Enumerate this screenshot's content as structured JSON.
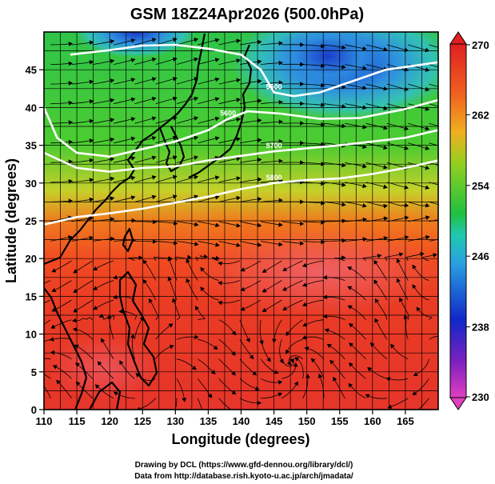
{
  "title": "GSM 18Z24Apr2026 (500.0hPa)",
  "xlabel": "Longitude (degrees)",
  "ylabel": "Latitude  (degrees)",
  "x_ticks": [
    "110",
    "115",
    "120",
    "125",
    "130",
    "135",
    "140",
    "145",
    "150",
    "155",
    "160",
    "165"
  ],
  "y_ticks": [
    "0",
    "5",
    "10",
    "15",
    "20",
    "25",
    "30",
    "35",
    "40",
    "45"
  ],
  "colorbar_ticks": [
    "230",
    "238",
    "246",
    "254",
    "262",
    "270"
  ],
  "contour_labels": [
    "5500",
    "5600",
    "5700",
    "5800"
  ],
  "credits": {
    "line1": "Drawing by DCL (https://www.gfd-dennou.org/library/dcl/)",
    "line2": "Data from http://database.rish.kyoto-u.ac.jp/arch/jmadata/"
  },
  "chart_data": {
    "type": "heatmap",
    "variable": "temperature (K) with streamlines and geopotential height contours",
    "xlim": [
      110,
      170
    ],
    "ylim": [
      0,
      50
    ],
    "colorbar_range": [
      230,
      270
    ],
    "colors": {
      "low": "#e040c0",
      "mid_low": "#1030d0",
      "mid": "#20c040",
      "high": "#e02020"
    },
    "contours": [
      {
        "label": "5500",
        "points": [
          [
            114,
            47
          ],
          [
            120,
            47.6
          ],
          [
            125,
            48.2
          ],
          [
            130,
            48.3
          ],
          [
            135,
            47.8
          ],
          [
            140,
            47
          ],
          [
            143,
            45
          ],
          [
            145,
            42
          ],
          [
            148,
            41.5
          ],
          [
            152,
            42
          ],
          [
            157,
            43.5
          ],
          [
            162,
            45
          ],
          [
            170,
            46
          ]
        ]
      },
      {
        "label": "5600",
        "points": [
          [
            110,
            40
          ],
          [
            112,
            36
          ],
          [
            115,
            34
          ],
          [
            120,
            33.5
          ],
          [
            125,
            34.5
          ],
          [
            130,
            35.5
          ],
          [
            135,
            37
          ],
          [
            138,
            38.5
          ],
          [
            141,
            39.5
          ],
          [
            146,
            39.2
          ],
          [
            152,
            38.5
          ],
          [
            158,
            38.6
          ],
          [
            165,
            39.8
          ],
          [
            170,
            41
          ]
        ]
      },
      {
        "label": "5700",
        "points": [
          [
            110,
            34
          ],
          [
            115,
            32
          ],
          [
            120,
            31.5
          ],
          [
            125,
            32
          ],
          [
            130,
            32.2
          ],
          [
            135,
            33
          ],
          [
            140,
            33.6
          ],
          [
            145,
            34.2
          ],
          [
            150,
            34.6
          ],
          [
            155,
            35
          ],
          [
            160,
            35.5
          ],
          [
            165,
            36
          ],
          [
            170,
            37
          ]
        ]
      },
      {
        "label": "5800",
        "points": [
          [
            110,
            24.5
          ],
          [
            115,
            25.5
          ],
          [
            120,
            26
          ],
          [
            125,
            26.6
          ],
          [
            130,
            27.4
          ],
          [
            135,
            28.2
          ],
          [
            140,
            29.2
          ],
          [
            145,
            30
          ],
          [
            150,
            30.4
          ],
          [
            155,
            30.6
          ],
          [
            160,
            31.2
          ],
          [
            165,
            32
          ],
          [
            170,
            33
          ]
        ]
      }
    ]
  }
}
